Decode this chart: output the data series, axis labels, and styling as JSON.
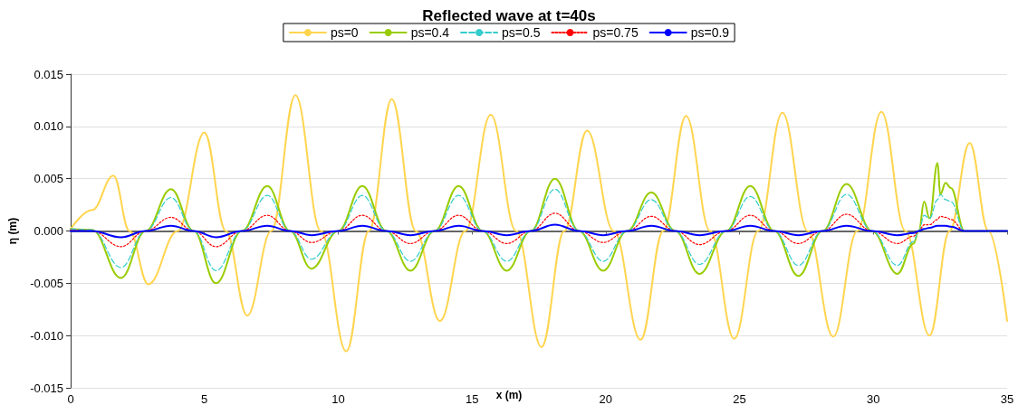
{
  "chart_data": {
    "type": "line",
    "title": "Reflected wave at t=40s",
    "xlabel": "x (m)",
    "ylabel": "η (m)",
    "xlim": [
      0,
      35
    ],
    "xticks": [
      0,
      5,
      10,
      15,
      20,
      25,
      30,
      35
    ],
    "ylim": [
      -0.015,
      0.015
    ],
    "yticks": [
      {
        "value": -0.015,
        "label": "-0.015"
      },
      {
        "value": -0.01,
        "label": "-0.010"
      },
      {
        "value": -0.005,
        "label": "-0.005"
      },
      {
        "value": 0,
        "label": "0.000"
      },
      {
        "value": 0.005,
        "label": "0.005"
      },
      {
        "value": 0.01,
        "label": "0.010"
      },
      {
        "value": 0.015,
        "label": "0.015"
      }
    ],
    "grid": "y",
    "legend": "top",
    "marker": "none",
    "x": [
      0,
      0.8,
      1.88,
      2.8,
      3.75,
      4.6,
      5.43,
      6.4,
      7.35,
      8.2,
      9.0,
      10.0,
      10.9,
      11.8,
      12.7,
      13.6,
      14.5,
      15.4,
      16.3,
      17.2,
      18.1,
      19.0,
      19.9,
      20.8,
      21.7,
      22.6,
      23.5,
      24.5,
      25.4,
      26.3,
      27.2,
      28.1,
      29.0,
      29.95,
      30.9,
      31.5,
      31.7,
      31.9,
      32.1,
      32.4,
      32.5,
      32.7,
      32.9,
      33.4,
      35
    ],
    "series": [
      {
        "name": "ps=0",
        "color": "#ffd54f",
        "line_style": "solid",
        "x": [
          0,
          0.8,
          1.6,
          2.2,
          2.9,
          4.0,
          5.0,
          5.8,
          6.6,
          7.5,
          8.4,
          9.35,
          10.3,
          11.15,
          12.0,
          12.9,
          13.8,
          14.75,
          15.7,
          16.65,
          17.6,
          18.45,
          19.3,
          20.3,
          21.3,
          22.15,
          23.0,
          23.9,
          24.8,
          25.7,
          26.6,
          27.55,
          28.5,
          29.4,
          30.3,
          31.2,
          32.1,
          32.85,
          33.6,
          34.3,
          35
        ],
        "values": [
          0.0002,
          0.002,
          0.0053,
          0,
          -0.0051,
          0,
          0.0094,
          0,
          -0.0081,
          0,
          0.013,
          0,
          -0.0115,
          0,
          0.0126,
          0,
          -0.0086,
          0,
          0.0111,
          0,
          -0.0111,
          0,
          0.0096,
          0,
          -0.0104,
          0,
          0.011,
          0,
          -0.0103,
          0,
          0.0113,
          0,
          -0.0101,
          0,
          0.0114,
          0,
          -0.01,
          0,
          0.0084,
          0,
          -0.0086
        ]
      },
      {
        "name": "ps=0.4",
        "color": "#99cc00",
        "line_style": "solid",
        "values": [
          0.0002,
          0.0001,
          -0.0045,
          0,
          0.004,
          0,
          -0.005,
          0,
          0.0043,
          0,
          -0.0036,
          0,
          0.0043,
          0,
          -0.0038,
          0,
          0.0043,
          0,
          -0.0038,
          0,
          0.005,
          0,
          -0.0038,
          0,
          0.0037,
          0,
          -0.0041,
          0,
          0.0043,
          0,
          -0.0043,
          0,
          0.0045,
          0,
          -0.0041,
          -0.0012,
          0,
          0.0028,
          0.0012,
          0.0065,
          0.0035,
          0.0046,
          0.0041,
          0,
          0
        ]
      },
      {
        "name": "ps=0.5",
        "color": "#33cccc",
        "line_style": "dashed",
        "values": [
          0.0002,
          0.0001,
          -0.0035,
          0,
          0.0032,
          0,
          -0.0038,
          0,
          0.0034,
          0,
          -0.0027,
          0,
          0.0034,
          0,
          -0.0029,
          0,
          0.0034,
          0,
          -0.0029,
          0,
          0.004,
          0,
          -0.0029,
          0,
          0.003,
          0,
          -0.0032,
          0,
          0.0033,
          0,
          -0.0033,
          0,
          0.0035,
          0,
          -0.0033,
          -0.001,
          0,
          0.0015,
          0.0012,
          0.003,
          0.0035,
          0.003,
          0.0028,
          0,
          0
        ]
      },
      {
        "name": "ps=0.75",
        "color": "#ff0000",
        "line_style": "dotted",
        "values": [
          0.0001,
          0,
          -0.0015,
          0,
          0.0013,
          0,
          -0.0015,
          0,
          0.0015,
          0,
          -0.0011,
          0,
          0.0015,
          0,
          -0.0012,
          0,
          0.0015,
          0,
          -0.0012,
          0,
          0.0017,
          0,
          -0.0011,
          0,
          0.0014,
          0,
          -0.0013,
          0,
          0.0015,
          0,
          -0.0012,
          0,
          0.0016,
          0,
          -0.0012,
          -0.0005,
          0,
          0.0006,
          0.0006,
          0.0011,
          0.0014,
          0.0013,
          0.0011,
          0,
          0
        ]
      },
      {
        "name": "ps=0.9",
        "color": "#0000ff",
        "line_style": "solid",
        "values": [
          0,
          0,
          -0.0006,
          0,
          0.0005,
          0,
          -0.0006,
          0,
          0.0005,
          0,
          -0.0004,
          0,
          0.0005,
          0,
          -0.0004,
          0,
          0.0005,
          0,
          -0.0004,
          0,
          0.0006,
          0,
          -0.0004,
          0,
          0.0005,
          0,
          -0.0004,
          0,
          0.0005,
          0,
          -0.0004,
          0,
          0.0005,
          0,
          -0.0004,
          -0.0002,
          0,
          0.0002,
          0.0003,
          0.0005,
          0.0005,
          0.0005,
          0.0004,
          0,
          0
        ]
      }
    ]
  }
}
